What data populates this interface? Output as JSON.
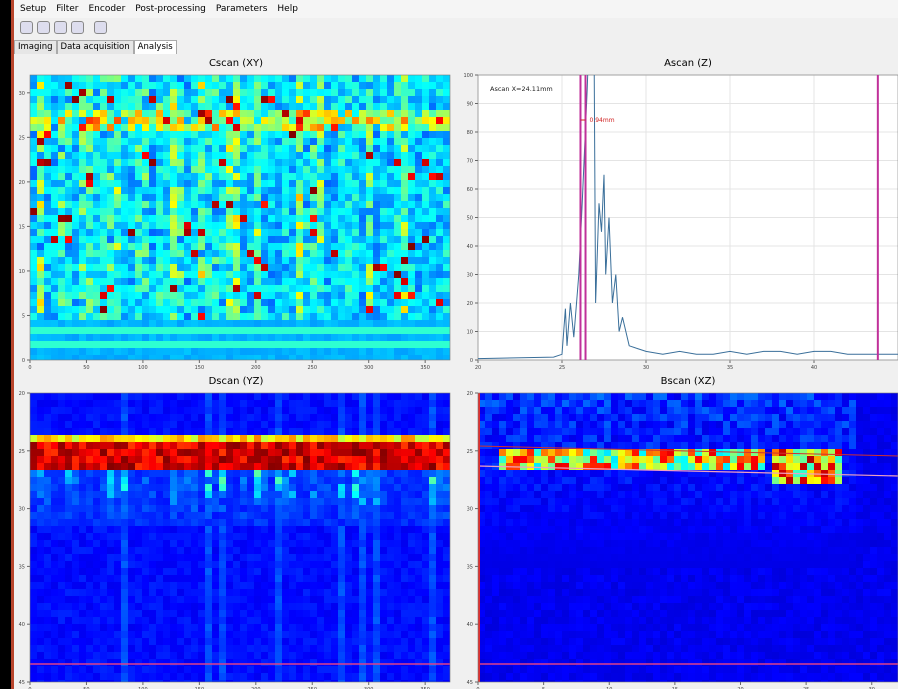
{
  "menu": [
    "Setup",
    "Filter",
    "Encoder",
    "Post-processing",
    "Parameters",
    "Help"
  ],
  "tabs": [
    "Imaging",
    "Data acquisition",
    "Analysis"
  ],
  "active_tab": 2,
  "panels": {
    "cscan": {
      "title": "Cscan (XY)",
      "xlim": [
        0,
        372
      ],
      "xticks": [
        0,
        50,
        100,
        150,
        200,
        250,
        300,
        350
      ],
      "ylim": [
        0,
        32
      ],
      "yticks": [
        0,
        5,
        10,
        15,
        20,
        25,
        30
      ],
      "y_inverted": false
    },
    "ascan": {
      "type": "line",
      "title": "Ascan (Z)",
      "annotation": "Ascan X=24.11mm",
      "marker_label": "0.94mm",
      "color": "#3a6f9a",
      "gate_color": "#c0309a",
      "x": [
        20,
        24.5,
        25.0,
        25.2,
        25.3,
        25.5,
        25.7,
        26.0,
        26.2,
        26.5,
        26.7,
        26.9,
        27.0,
        27.2,
        27.35,
        27.5,
        27.6,
        27.8,
        28.0,
        28.2,
        28.4,
        28.6,
        29.0,
        29.5,
        30,
        31,
        32,
        33,
        34,
        35,
        36,
        37,
        38,
        39,
        40,
        41,
        42,
        43,
        44,
        45
      ],
      "values": [
        0.5,
        1,
        2,
        18,
        5,
        20,
        8,
        30,
        55,
        95,
        130,
        120,
        20,
        55,
        45,
        65,
        30,
        50,
        20,
        30,
        10,
        15,
        5,
        4,
        3,
        2,
        3,
        2,
        2,
        3,
        2,
        3,
        3,
        2,
        3,
        3,
        2,
        2,
        2,
        2
      ],
      "gates": [
        26.1,
        26.4,
        43.8
      ],
      "xlim": [
        20,
        45
      ],
      "xticks": [
        20,
        25,
        30,
        35,
        40
      ],
      "ylim": [
        0,
        100
      ],
      "yticks": [
        0,
        10,
        20,
        30,
        40,
        50,
        60,
        70,
        80,
        90,
        100
      ],
      "grid": true
    },
    "dscan": {
      "title": "Dscan (YZ)",
      "xlim": [
        0,
        372
      ],
      "xticks": [
        0,
        50,
        100,
        150,
        200,
        250,
        300,
        350
      ],
      "ylim": [
        20,
        45
      ],
      "yticks": [
        20,
        25,
        30,
        35,
        40,
        45
      ],
      "y_inverted": true
    },
    "bscan": {
      "title": "Bscan (XZ)",
      "xlim": [
        0,
        32
      ],
      "xticks": [
        0,
        5,
        10,
        15,
        20,
        25,
        30
      ],
      "ylim": [
        20,
        45
      ],
      "yticks": [
        20,
        25,
        30,
        35,
        40,
        45
      ],
      "y_inverted": true
    }
  }
}
